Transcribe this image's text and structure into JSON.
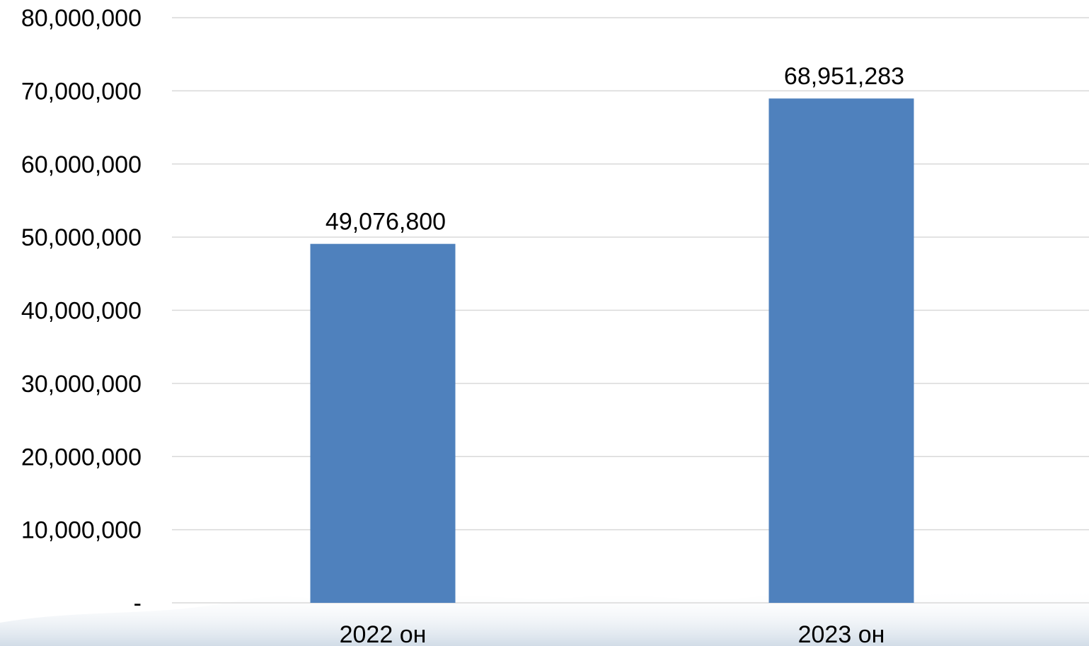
{
  "chart_data": {
    "type": "bar",
    "categories": [
      "2022 он",
      "2023 он"
    ],
    "values": [
      49076800,
      68951283
    ],
    "data_labels": [
      "49,076,800",
      "68,951,283"
    ],
    "ylim": [
      0,
      80000000
    ],
    "yticks": [
      0,
      10000000,
      20000000,
      30000000,
      40000000,
      50000000,
      60000000,
      70000000,
      80000000
    ],
    "ytick_labels": [
      "-",
      "10,000,000",
      "20,000,000",
      "30,000,000",
      "40,000,000",
      "50,000,000",
      "60,000,000",
      "70,000,000",
      "80,000,000"
    ],
    "grid": true,
    "legend": "none",
    "bar_color": "#4f81bd",
    "title": "",
    "xlabel": "",
    "ylabel": ""
  }
}
